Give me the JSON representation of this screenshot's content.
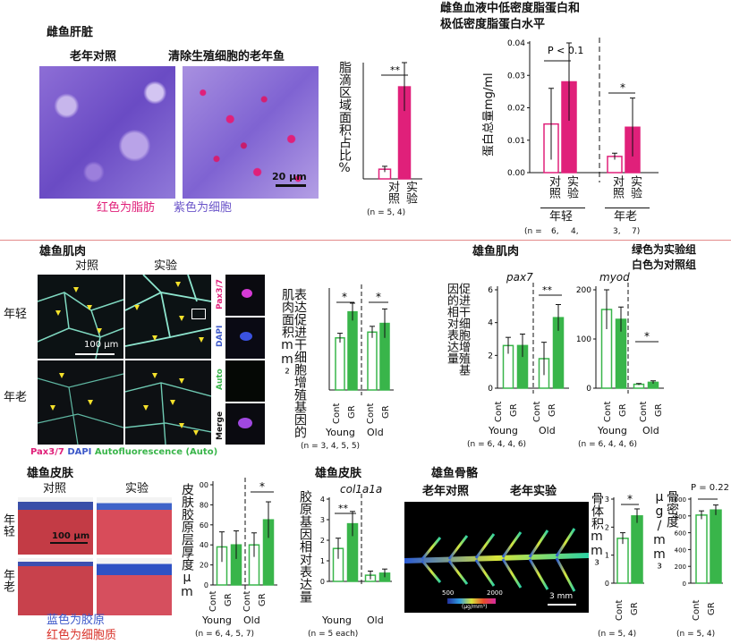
{
  "colors": {
    "pink": "#e0207a",
    "green": "#39b54a",
    "purple": "#6b55c9",
    "blue": "#3b57c9",
    "divider": "#e48a8a"
  },
  "liver": {
    "title": "雌鱼肝脏",
    "ctrl": "老年对照",
    "exp": "清除生殖细胞的老年鱼",
    "scale": "20 µm",
    "caption_red": "红色为脂肪",
    "caption_purple": "紫色为细胞",
    "ylabel": "脂滴区域面积占比%",
    "x_labels": [
      "对照",
      "实验"
    ],
    "n_text": "(n = 5,   4)",
    "sig": "**"
  },
  "ldl": {
    "title_line1": "雌鱼血液中低密度脂蛋白和",
    "title_line2": "极低密度脂蛋白水平",
    "ylabel": "蛋白总量mg/ml",
    "yticks": [
      "0.00",
      "0.01",
      "0.02",
      "0.03",
      "0.04"
    ],
    "p_text": "P < 0.1",
    "sig_old": "*",
    "x_labels": [
      "对照",
      "实验",
      "对照",
      "实验"
    ],
    "groups": [
      "年轻",
      "年老"
    ],
    "n_text": [
      "(n =",
      "6,",
      "4,",
      "3,",
      "7)"
    ]
  },
  "muscle": {
    "title": "雄鱼肌肉",
    "ctrl": "对照",
    "exp": "实验",
    "young": "年轻",
    "old": "年老",
    "scale": "100 µm",
    "stain_legend": [
      "Pax3/7",
      "DAPI",
      "Autofluorescence (Auto)"
    ],
    "panel_labels": [
      "Pax3/7",
      "DAPI",
      "Auto",
      "Merge"
    ],
    "chart_ylabel": "表达促进干细胞增殖基因的肌肉面积mm²",
    "groups": [
      "Young",
      "Old"
    ],
    "x_labels": [
      "Cont",
      "GR"
    ],
    "n_text": "(n =   3,  4,    5,  5)",
    "sig": "*"
  },
  "gene": {
    "title": "雄鱼肌肉",
    "ylabel": "促进干细胞增殖基因的相对表达量",
    "gene1": "pax7",
    "gene2": "myod",
    "note_line1": "绿色为实验组",
    "note_line2": "白色为对照组",
    "groups": [
      "Young",
      "Old"
    ],
    "x_labels": [
      "Cont",
      "GR"
    ],
    "n_text": "(n =   6,  4,    4,  6)",
    "sig_pax": "**",
    "sig_myod": "*"
  },
  "skin": {
    "title": "雄鱼皮肤",
    "ctrl": "对照",
    "exp": "实验",
    "young": "年轻",
    "old": "年老",
    "scale": "100 µm",
    "caption_blue": "蓝色为胶原",
    "caption_red": "红色为细胞质",
    "ylabel1": "皮肤胶原层厚度µm",
    "n_text1": "(n =  6, 4,   5, 7)",
    "title2": "雄鱼皮肤",
    "gene": "col1a1a",
    "ylabel2": "胶原基因相对表达量",
    "n_text2": "(n = 5 each)",
    "groups": [
      "Young",
      "Old"
    ],
    "x_labels": [
      "Cont",
      "GR"
    ],
    "sig1": "*",
    "sig2": "**"
  },
  "bone": {
    "title": "雄鱼骨骼",
    "ctrl": "老年对照",
    "exp": "老年实验",
    "colorbar_min": "500",
    "colorbar_max": "2000",
    "colorbar_unit": "(µg/mm³)",
    "scale": "3 mm",
    "ylabel1": "骨体积mm³",
    "ylabel2": "骨密度µg/mm³",
    "p_text": "P = 0.22",
    "sig": "*",
    "x_labels": [
      "Cont",
      "GR"
    ],
    "n_text": "(n =  5,  4)"
  },
  "chart_data": [
    {
      "type": "bar",
      "title": "",
      "ylabel": "脂滴区域面积占比%",
      "categories": [
        "对照",
        "实验"
      ],
      "values": [
        1,
        9.5
      ],
      "errors": [
        0.3,
        2.5
      ],
      "ylim": [
        0,
        12
      ],
      "colors": [
        "#ffffff",
        "#e0207a"
      ]
    },
    {
      "type": "bar",
      "title": "雌鱼血液中低密度脂蛋白和极低密度脂蛋白水平",
      "ylabel": "蛋白总量mg/ml",
      "categories": [
        "年轻 对照",
        "年轻 实验",
        "年老 对照",
        "年老 实验"
      ],
      "values": [
        0.015,
        0.028,
        0.005,
        0.014
      ],
      "errors": [
        0.011,
        0.012,
        0.001,
        0.009
      ],
      "ylim": [
        0,
        0.04
      ]
    },
    {
      "type": "bar",
      "ylabel": "表达促进干细胞增殖基因的肌肉面积mm²",
      "categories": [
        "Young Cont",
        "Young GR",
        "Old Cont",
        "Old GR"
      ],
      "values": [
        90,
        135,
        100,
        115
      ],
      "errors": [
        8,
        15,
        10,
        25
      ],
      "ylim": [
        0,
        170
      ]
    },
    {
      "type": "bar",
      "title": "pax7",
      "categories": [
        "Young Cont",
        "Young GR",
        "Old Cont",
        "Old GR"
      ],
      "values": [
        2.6,
        2.6,
        1.8,
        4.3
      ],
      "errors": [
        0.5,
        0.7,
        1.0,
        0.8
      ],
      "ylim": [
        0,
        6
      ]
    },
    {
      "type": "bar",
      "title": "myod",
      "categories": [
        "Young Cont",
        "Young GR",
        "Old Cont",
        "Old GR"
      ],
      "values": [
        160,
        140,
        8,
        12
      ],
      "errors": [
        40,
        25,
        1.5,
        3
      ],
      "ylim": [
        0,
        200
      ]
    },
    {
      "type": "bar",
      "ylabel": "皮肤胶原层厚度µm",
      "categories": [
        "Young Cont",
        "Young GR",
        "Old Cont",
        "Old GR"
      ],
      "values": [
        38,
        40,
        40,
        65
      ],
      "errors": [
        15,
        14,
        12,
        18
      ],
      "ylim": [
        0,
        100
      ]
    },
    {
      "type": "bar",
      "title": "col1a1a",
      "ylabel": "胶原基因相对表达量",
      "categories": [
        "Young Cont",
        "Young GR",
        "Old Cont",
        "Old GR"
      ],
      "values": [
        1.6,
        2.8,
        0.3,
        0.4
      ],
      "errors": [
        0.5,
        0.6,
        0.2,
        0.2
      ],
      "ylim": [
        0,
        4
      ]
    },
    {
      "type": "bar",
      "ylabel": "骨体积mm³",
      "categories": [
        "Cont",
        "GR"
      ],
      "values": [
        1.6,
        2.4
      ],
      "errors": [
        0.2,
        0.25
      ],
      "ylim": [
        0,
        3
      ]
    },
    {
      "type": "bar",
      "ylabel": "骨密度µg/mm³",
      "categories": [
        "Cont",
        "GR"
      ],
      "values": [
        810,
        870
      ],
      "errors": [
        50,
        60
      ],
      "ylim": [
        0,
        1000
      ]
    }
  ]
}
